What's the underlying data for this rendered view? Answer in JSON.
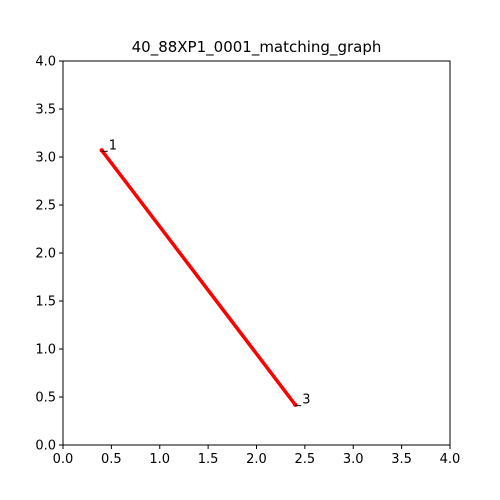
{
  "chart_data": {
    "type": "line",
    "title": "40_88XP1_0001_matching_graph",
    "xlabel": "",
    "ylabel": "",
    "xlim": [
      0.0,
      4.0
    ],
    "ylim": [
      0.0,
      4.0
    ],
    "grid": false,
    "x_ticks": [
      "0.0",
      "0.5",
      "1.0",
      "1.5",
      "2.0",
      "2.5",
      "3.0",
      "3.5",
      "4.0"
    ],
    "y_ticks": [
      "0.0",
      "0.5",
      "1.0",
      "1.5",
      "2.0",
      "2.5",
      "3.0",
      "3.5",
      "4.0"
    ],
    "nodes": [
      {
        "label": "1",
        "x": 0.4,
        "y": 3.07
      },
      {
        "label": "3",
        "x": 2.4,
        "y": 0.42
      }
    ],
    "edges": [
      {
        "from": "1",
        "to": "3",
        "color": "#ff0000"
      }
    ]
  }
}
